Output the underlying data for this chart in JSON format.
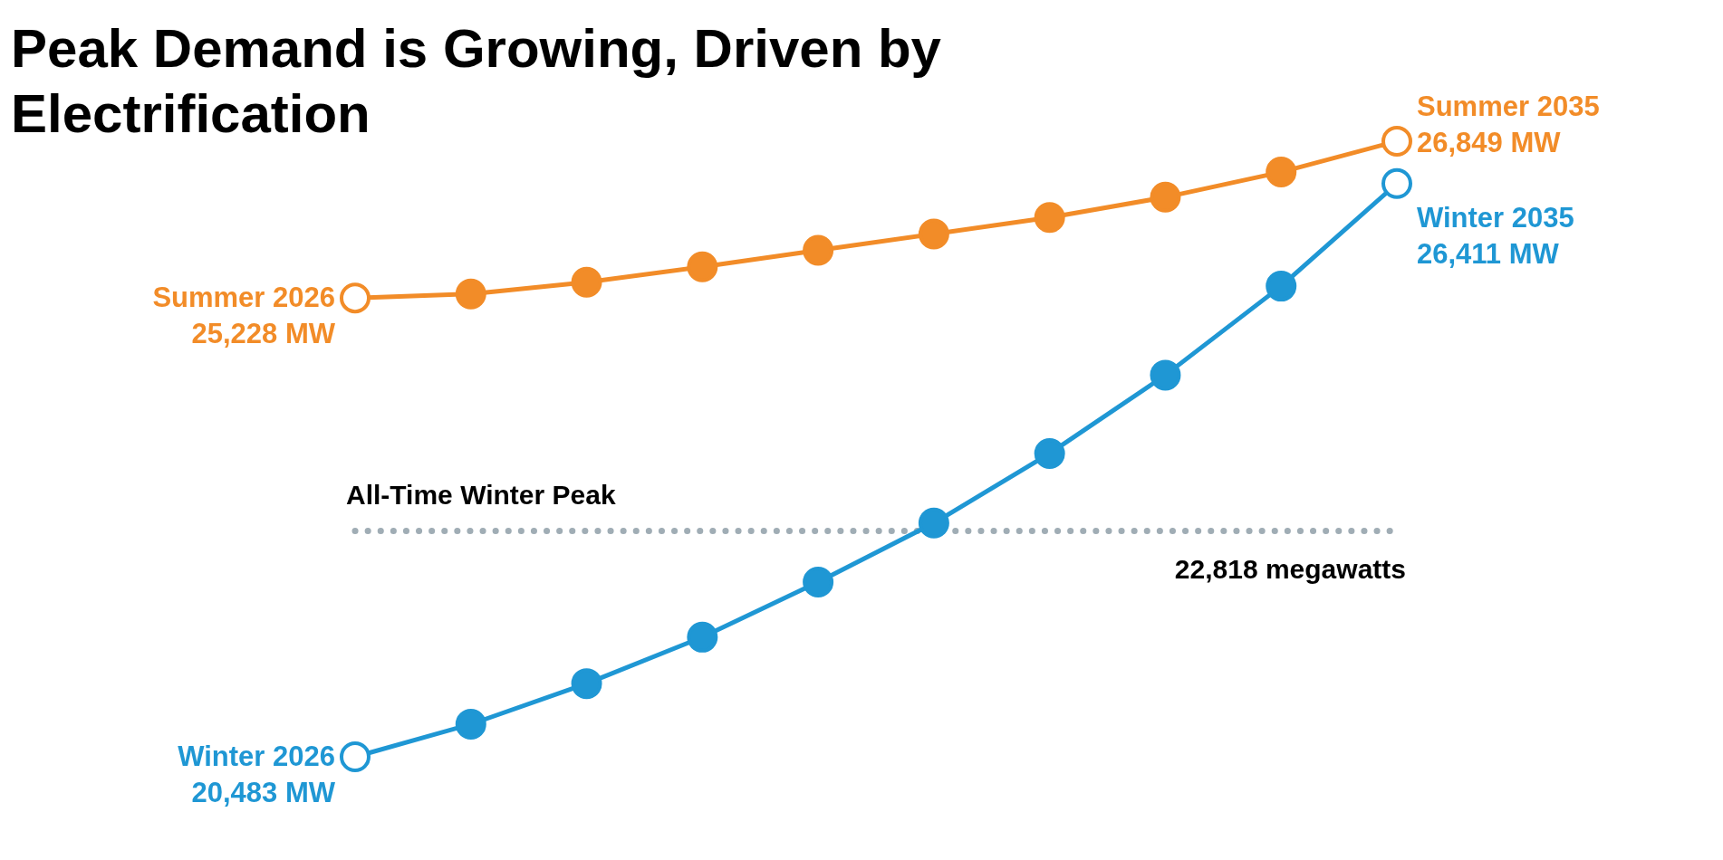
{
  "chart_data": {
    "type": "line",
    "title": "Peak Demand is Growing, Driven by Electrification",
    "categories": [
      null,
      null,
      null,
      null,
      null,
      null,
      null,
      null,
      null,
      null
    ],
    "series": [
      {
        "color": "#f28c28",
        "values": [
          25228,
          25270,
          25390,
          25550,
          25720,
          25890,
          26060,
          26270,
          26530,
          26849
        ],
        "value_labels": [
          "Summer 2026\n25,228 MW",
          null,
          null,
          null,
          null,
          null,
          null,
          null,
          null,
          "Summer 2035\n26,849 MW"
        ]
      },
      {
        "color": "#1f97d4",
        "values": [
          20483,
          20820,
          21240,
          21720,
          22290,
          22900,
          23620,
          24430,
          25350,
          26411
        ],
        "value_labels": [
          "Winter 2026\n20,483 MW",
          null,
          null,
          null,
          null,
          null,
          null,
          null,
          null,
          "Winter 2035\n26,411 MW"
        ]
      }
    ],
    "ref_lines": [
      {
        "axis": "y",
        "value": 22818,
        "label": "All-Time Winter Peak",
        "color": "#a0adb5",
        "line_style": "dotted"
      }
    ],
    "annotations": [
      {
        "text": "22,818 megawatts",
        "y": 22818
      }
    ],
    "marker": "circle"
  }
}
